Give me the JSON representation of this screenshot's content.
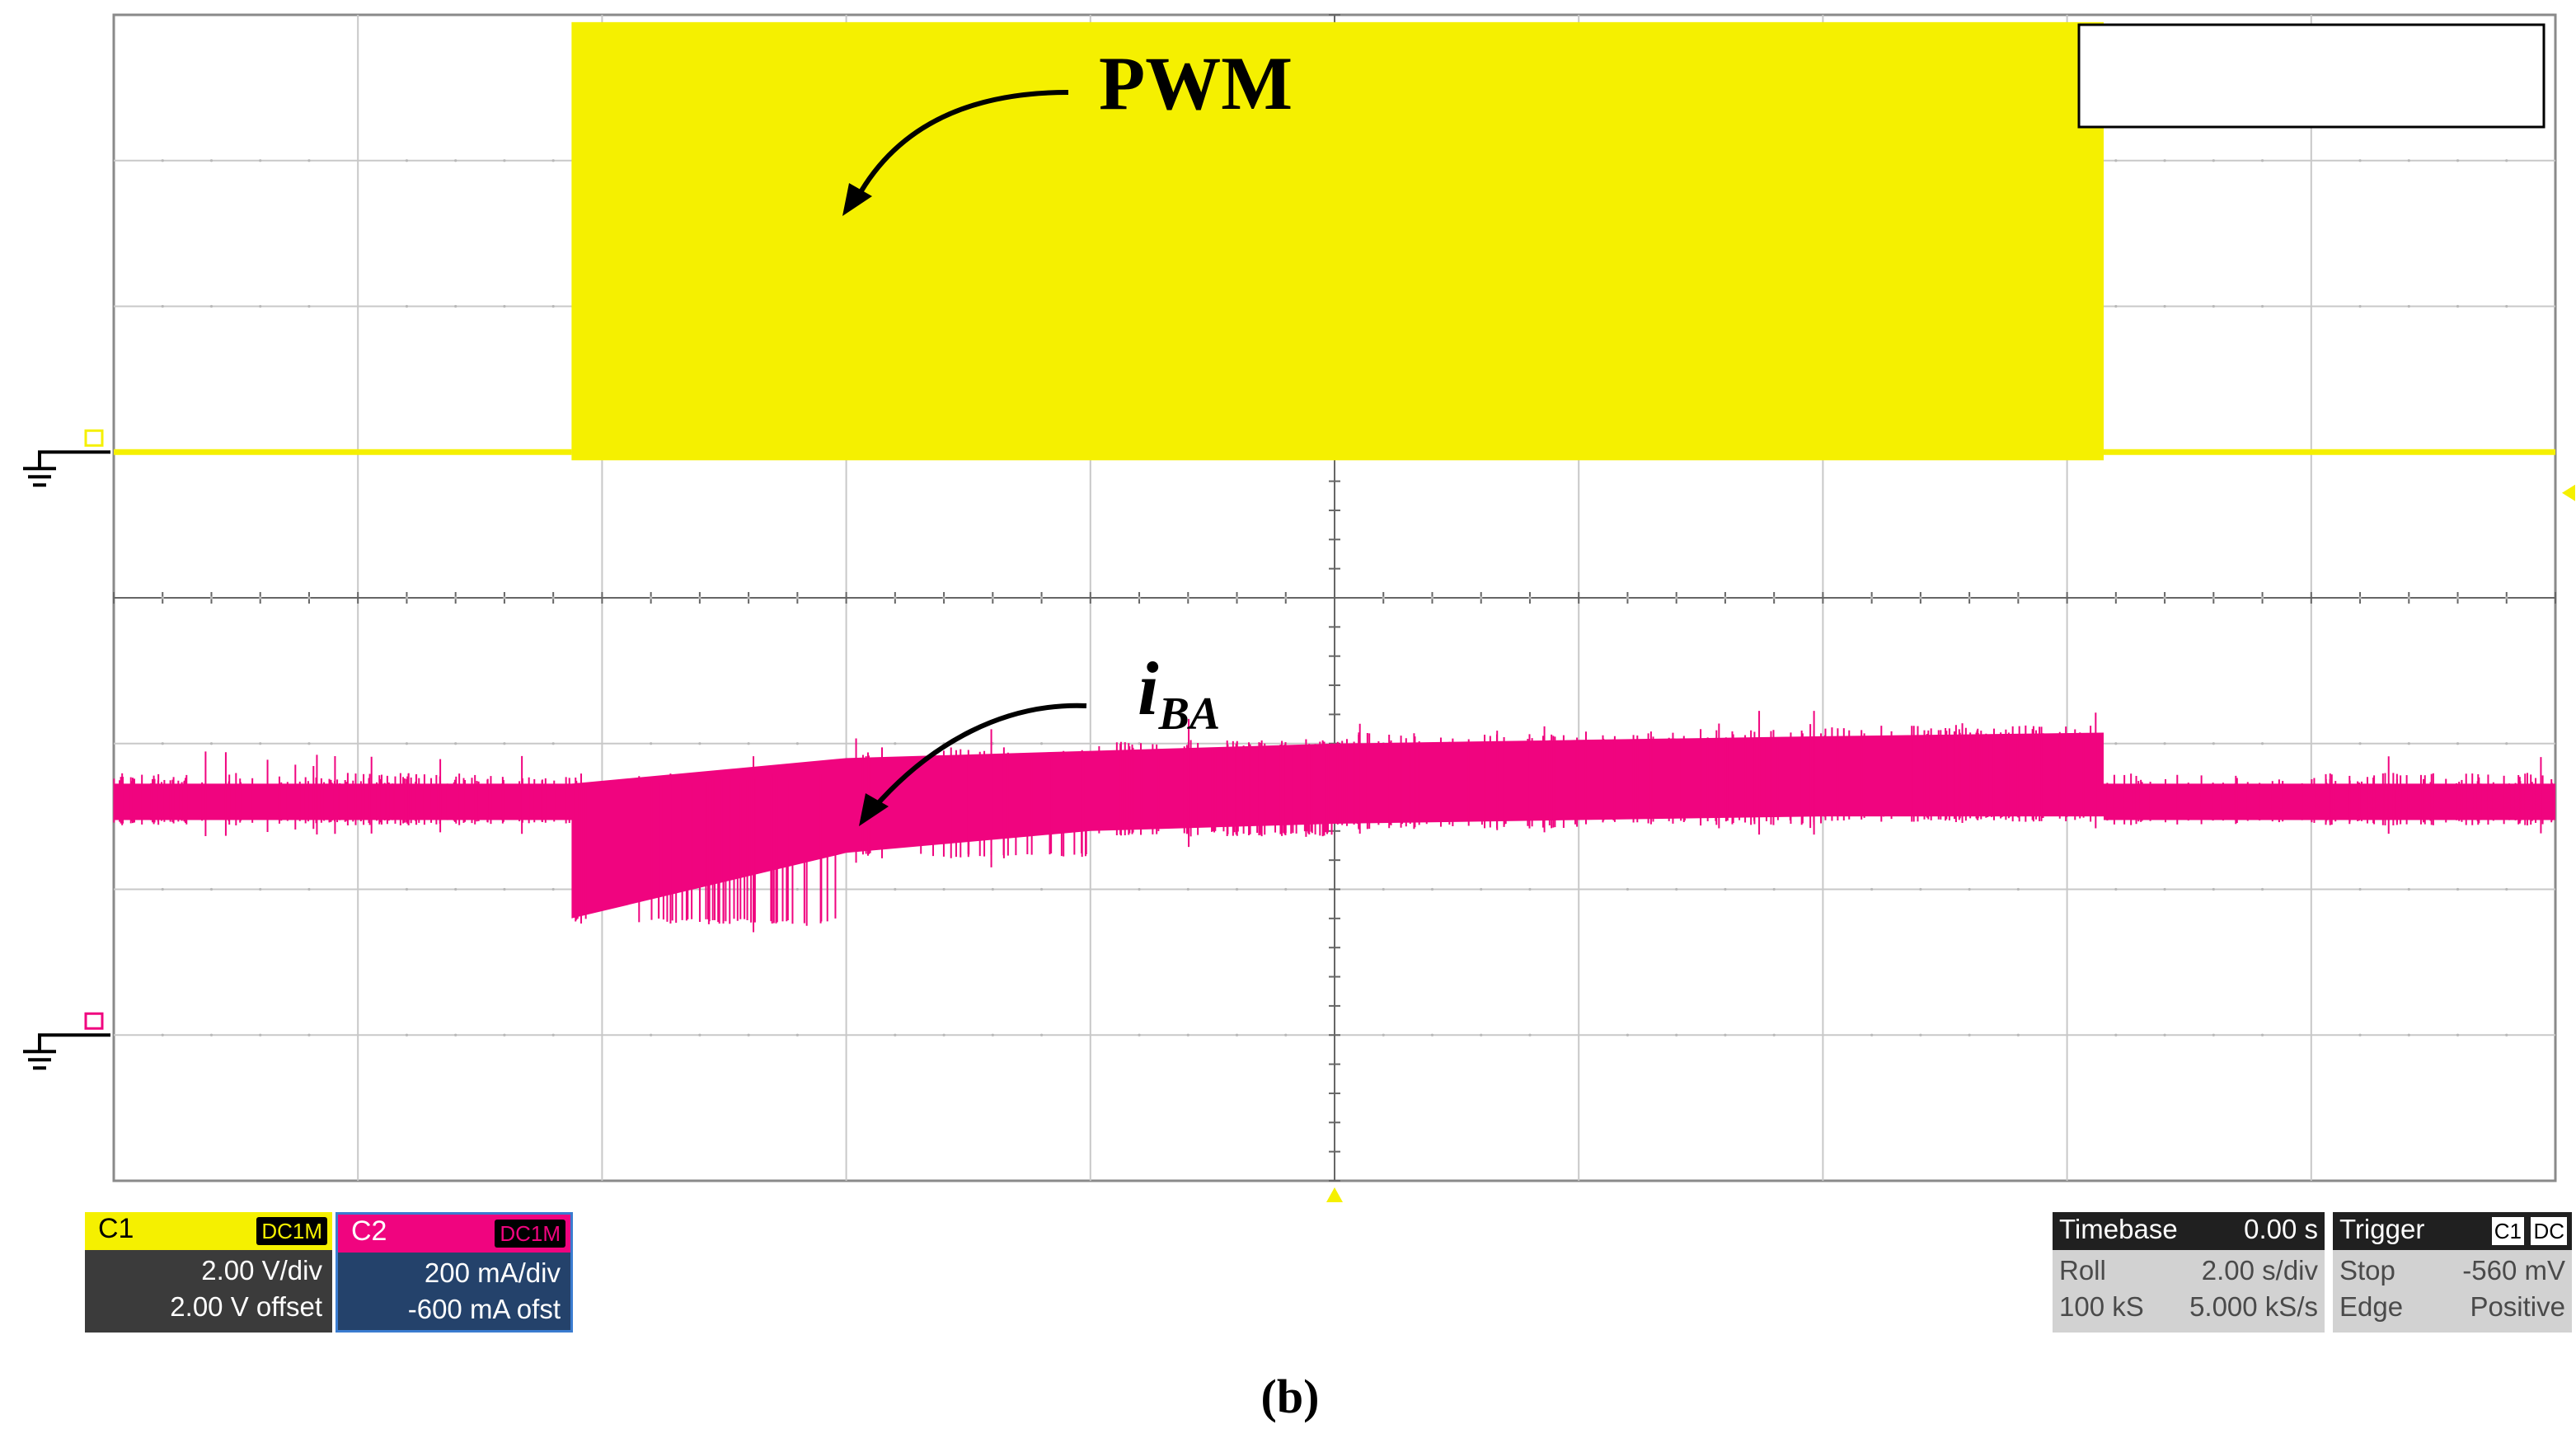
{
  "chart_data": {
    "type": "line",
    "title": "",
    "caption": "(b)",
    "grid": true,
    "divisions": {
      "x": 10,
      "y": 8
    },
    "time_per_div": "2.00 s/div",
    "series": [
      {
        "name": "PWM",
        "channel": "C1",
        "color": "#f5f000",
        "volts_per_div": 2.0,
        "offset_v": 2.0,
        "x": [
          -10.0,
          -6.25,
          -6.25,
          6.3,
          6.3,
          10.0
        ],
        "y": [
          0.0,
          0.0,
          5.9,
          5.9,
          0.0,
          0.0
        ],
        "note_label": "PWM"
      },
      {
        "name": "iBA",
        "channel": "C2",
        "color": "#f0047f",
        "amps_per_div_mA": 200,
        "offset_mA": -600,
        "x": [
          -10.0,
          -6.25,
          -6.25,
          -4.0,
          -2.0,
          0.0,
          2.0,
          4.0,
          6.3,
          6.3,
          10.0
        ],
        "y_center_mA": [
          320,
          320,
          280,
          325,
          345,
          355,
          365,
          370,
          375,
          320,
          320
        ],
        "y_upper_mA": [
          345,
          345,
          345,
          380,
          390,
          400,
          405,
          410,
          415,
          345,
          345
        ],
        "y_lower_mA": [
          295,
          295,
          160,
          250,
          280,
          290,
          295,
          300,
          300,
          295,
          295
        ],
        "note_label": "i",
        "note_sub": "BA"
      }
    ],
    "ground_markers": [
      "C1",
      "C2"
    ]
  },
  "channels": {
    "c1": {
      "name": "C1",
      "coupling": "DC1M",
      "scale": "2.00 V/div",
      "offset": "2.00 V offset"
    },
    "c2": {
      "name": "C2",
      "coupling": "DC1M",
      "scale": "200 mA/div",
      "offset": "-600 mA ofst"
    }
  },
  "timebase": {
    "label": "Timebase",
    "value": "0.00 s",
    "mode": "Roll",
    "per_div": "2.00 s/div",
    "samples": "100 kS",
    "rate": "5.000 kS/s"
  },
  "trigger": {
    "label": "Trigger",
    "src": "C1",
    "coupling": "DC",
    "state": "Stop",
    "level": "-560 mV",
    "type": "Edge",
    "slope": "Positive"
  },
  "colors": {
    "grid": "#c8c8c8",
    "c1": "#f5f000",
    "c2": "#f0047f",
    "frame": "#8a8a8a"
  }
}
